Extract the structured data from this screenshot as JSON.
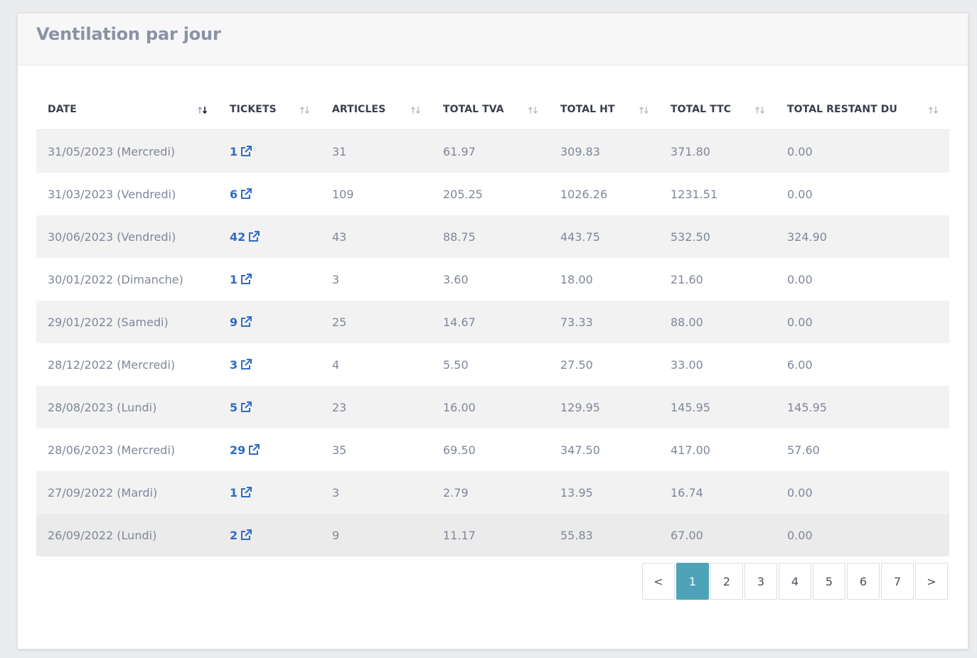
{
  "panel": {
    "title": "Ventilation par jour"
  },
  "table": {
    "columns": [
      "DATE",
      "TICKETS",
      "ARTICLES",
      "TOTAL TVA",
      "TOTAL HT",
      "TOTAL TTC",
      "TOTAL RESTANT DU"
    ],
    "sorted_column": "DATE",
    "rows": [
      {
        "date": "31/05/2023 (Mercredi)",
        "tickets": "1",
        "articles": "31",
        "tva": "61.97",
        "ht": "309.83",
        "ttc": "371.80",
        "restant": "0.00"
      },
      {
        "date": "31/03/2023 (Vendredi)",
        "tickets": "6",
        "articles": "109",
        "tva": "205.25",
        "ht": "1026.26",
        "ttc": "1231.51",
        "restant": "0.00"
      },
      {
        "date": "30/06/2023 (Vendredi)",
        "tickets": "42",
        "articles": "43",
        "tva": "88.75",
        "ht": "443.75",
        "ttc": "532.50",
        "restant": "324.90"
      },
      {
        "date": "30/01/2022 (Dimanche)",
        "tickets": "1",
        "articles": "3",
        "tva": "3.60",
        "ht": "18.00",
        "ttc": "21.60",
        "restant": "0.00"
      },
      {
        "date": "29/01/2022 (Samedi)",
        "tickets": "9",
        "articles": "25",
        "tva": "14.67",
        "ht": "73.33",
        "ttc": "88.00",
        "restant": "0.00"
      },
      {
        "date": "28/12/2022 (Mercredi)",
        "tickets": "3",
        "articles": "4",
        "tva": "5.50",
        "ht": "27.50",
        "ttc": "33.00",
        "restant": "6.00"
      },
      {
        "date": "28/08/2023 (Lundi)",
        "tickets": "5",
        "articles": "23",
        "tva": "16.00",
        "ht": "129.95",
        "ttc": "145.95",
        "restant": "145.95"
      },
      {
        "date": "28/06/2023 (Mercredi)",
        "tickets": "29",
        "articles": "35",
        "tva": "69.50",
        "ht": "347.50",
        "ttc": "417.00",
        "restant": "57.60"
      },
      {
        "date": "27/09/2022 (Mardi)",
        "tickets": "1",
        "articles": "3",
        "tva": "2.79",
        "ht": "13.95",
        "ttc": "16.74",
        "restant": "0.00"
      },
      {
        "date": "26/09/2022 (Lundi)",
        "tickets": "2",
        "articles": "9",
        "tva": "11.17",
        "ht": "55.83",
        "ttc": "67.00",
        "restant": "0.00"
      }
    ]
  },
  "pagination": {
    "prev": "<",
    "next": ">",
    "pages": [
      "1",
      "2",
      "3",
      "4",
      "5",
      "6",
      "7"
    ],
    "current": "1"
  },
  "colors": {
    "link": "#2f6cc4",
    "active_page": "#4fa3b8",
    "title": "#8a92a6"
  },
  "icons": {
    "sort_active": "sort-descending-icon",
    "sort_inactive": "sort-both-icon",
    "ticket_link": "external-link-icon"
  }
}
